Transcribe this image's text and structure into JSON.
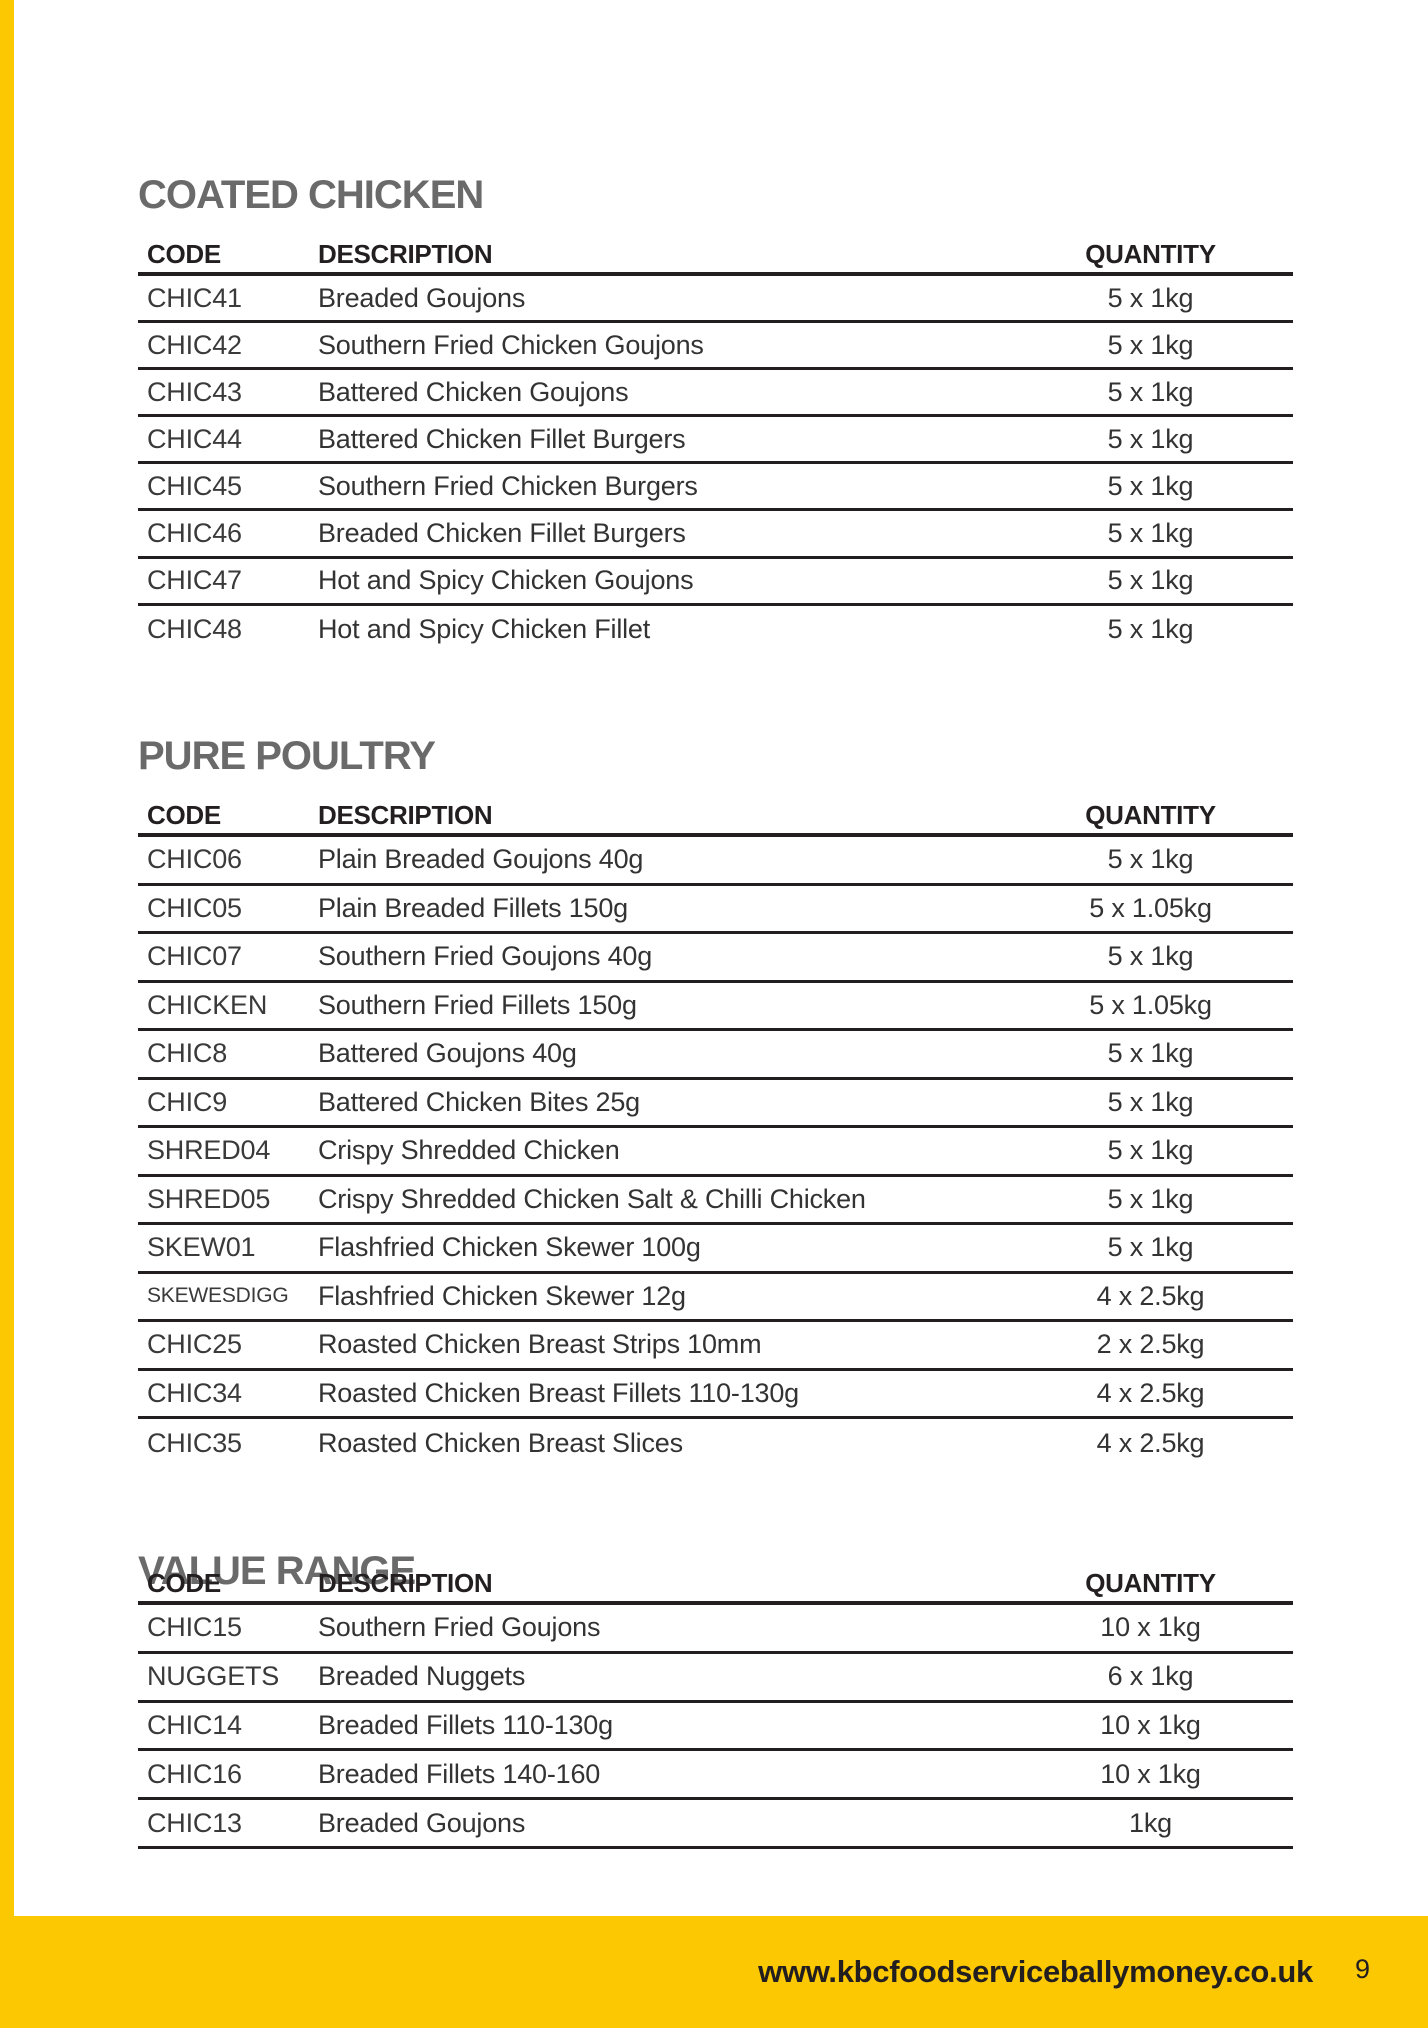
{
  "page": {
    "footer": {
      "website": "www.kbcfoodserviceballymoney.co.uk",
      "page_number": "9"
    }
  },
  "colors": {
    "accent_yellow": "#fcc802",
    "heading_gray": "#6a6a6a",
    "ink": "#231f20"
  },
  "tables": [
    {
      "title": "COATED CHICKEN",
      "columns": [
        "CODE",
        "DESCRIPTION",
        "QUANTITY"
      ],
      "rows": [
        {
          "code": "CHIC41",
          "description": "Breaded Goujons",
          "quantity": "5 x 1kg"
        },
        {
          "code": "CHIC42",
          "description": "Southern Fried Chicken Goujons",
          "quantity": "5 x 1kg"
        },
        {
          "code": "CHIC43",
          "description": "Battered Chicken Goujons",
          "quantity": "5 x 1kg"
        },
        {
          "code": "CHIC44",
          "description": "Battered Chicken Fillet Burgers",
          "quantity": "5 x 1kg"
        },
        {
          "code": "CHIC45",
          "description": "Southern Fried Chicken Burgers",
          "quantity": "5 x 1kg"
        },
        {
          "code": "CHIC46",
          "description": "Breaded Chicken Fillet Burgers",
          "quantity": "5 x 1kg"
        },
        {
          "code": "CHIC47",
          "description": "Hot and Spicy Chicken Goujons",
          "quantity": "5 x 1kg"
        },
        {
          "code": "CHIC48",
          "description": "Hot and Spicy Chicken Fillet",
          "quantity": "5 x 1kg"
        }
      ]
    },
    {
      "title": "PURE POULTRY",
      "columns": [
        "CODE",
        "DESCRIPTION",
        "QUANTITY"
      ],
      "rows": [
        {
          "code": "CHIC06",
          "description": "Plain Breaded Goujons 40g",
          "quantity": "5 x 1kg"
        },
        {
          "code": "CHIC05",
          "description": "Plain Breaded Fillets 150g",
          "quantity": "5 x 1.05kg"
        },
        {
          "code": "CHIC07",
          "description": "Southern Fried Goujons 40g",
          "quantity": "5 x 1kg"
        },
        {
          "code": "CHICKEN",
          "description": "Southern Fried Fillets 150g",
          "quantity": "5 x 1.05kg"
        },
        {
          "code": "CHIC8",
          "description": "Battered Goujons 40g",
          "quantity": "5 x 1kg"
        },
        {
          "code": "CHIC9",
          "description": "Battered Chicken Bites 25g",
          "quantity": "5 x 1kg"
        },
        {
          "code": "SHRED04",
          "description": "Crispy Shredded Chicken",
          "quantity": "5 x 1kg"
        },
        {
          "code": "SHRED05",
          "description": "Crispy Shredded Chicken Salt & Chilli Chicken",
          "quantity": "5 x 1kg"
        },
        {
          "code": "SKEW01",
          "description": "Flashfried Chicken Skewer 100g",
          "quantity": "5 x 1kg"
        },
        {
          "code": "SKEWESDIGG",
          "description": "Flashfried Chicken Skewer 12g",
          "quantity": "4 x 2.5kg"
        },
        {
          "code": "CHIC25",
          "description": "Roasted Chicken Breast Strips 10mm",
          "quantity": "2 x 2.5kg"
        },
        {
          "code": "CHIC34",
          "description": "Roasted Chicken Breast Fillets 110-130g",
          "quantity": "4 x 2.5kg"
        },
        {
          "code": "CHIC35",
          "description": "Roasted Chicken Breast Slices",
          "quantity": "4 x 2.5kg"
        }
      ]
    },
    {
      "title": "VALUE RANGE",
      "columns": [
        "CODE",
        "DESCRIPTION",
        "QUANTITY"
      ],
      "rows": [
        {
          "code": "CHIC15",
          "description": "Southern Fried Goujons",
          "quantity": "10 x 1kg"
        },
        {
          "code": "NUGGETS",
          "description": "Breaded Nuggets",
          "quantity": "6 x 1kg"
        },
        {
          "code": "CHIC14",
          "description": "Breaded Fillets 110-130g",
          "quantity": "10 x 1kg"
        },
        {
          "code": "CHIC16",
          "description": "Breaded Fillets 140-160",
          "quantity": "10 x 1kg"
        },
        {
          "code": "CHIC13",
          "description": "Breaded Goujons",
          "quantity": "1kg"
        }
      ]
    }
  ]
}
